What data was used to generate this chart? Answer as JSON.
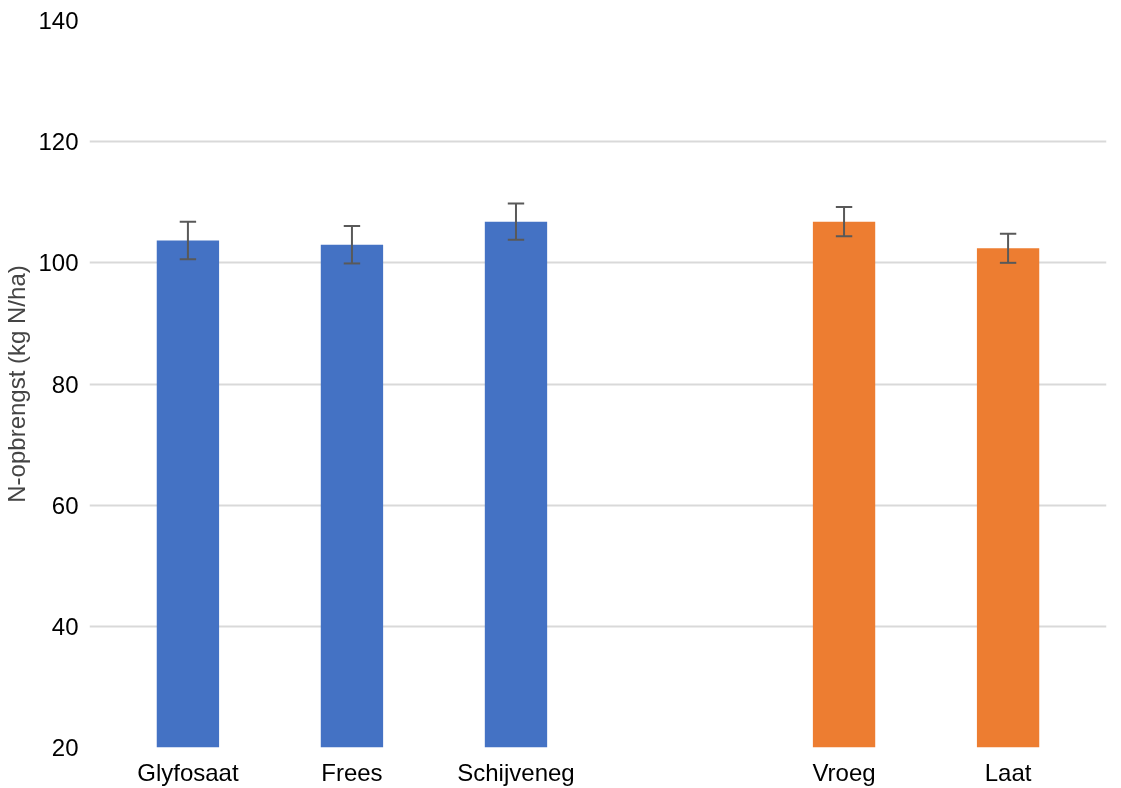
{
  "chart_data": {
    "type": "bar",
    "ylabel": "N-opbrengst (kg N/ha)",
    "categories": [
      "Glyfosaat",
      "Frees",
      "Schijveneg",
      null,
      "Vroeg",
      "Laat"
    ],
    "values": [
      103.7,
      103.0,
      106.8,
      null,
      106.8,
      102.4
    ],
    "colors": [
      "#4472c4",
      "#4472c4",
      "#4472c4",
      null,
      "#ed7d31",
      "#ed7d31"
    ],
    "errors": [
      3.1,
      3.1,
      3.0,
      null,
      2.4,
      2.4
    ],
    "ylim": [
      20,
      140
    ],
    "yticks": [
      20,
      40,
      60,
      80,
      100,
      120,
      140
    ],
    "grid": "y"
  }
}
